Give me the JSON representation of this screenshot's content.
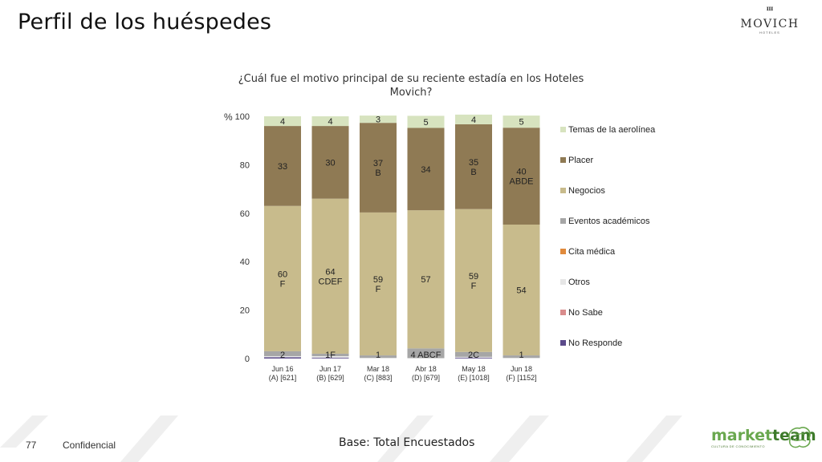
{
  "slide": {
    "title": "Perfil de los huéspedes",
    "page_number": "77",
    "confidential": "Confidencial",
    "base_note": "Base: Total Encuestados",
    "logo_brand": "MOVICH",
    "logo_brand_sub": "HOTELES",
    "logo_mt_part1": "market",
    "logo_mt_part2": "team",
    "logo_mt_tagline": "CULTURA DE CONOCIMIENTO"
  },
  "chart_data": {
    "type": "bar",
    "stacked": true,
    "title": "¿Cuál fue el motivo principal de su reciente estadía en los Hoteles Movich?",
    "ylabel": "%",
    "ylim": [
      0,
      100
    ],
    "yticks": [
      0,
      20,
      40,
      60,
      80,
      100
    ],
    "grid": false,
    "legend_position": "right",
    "categories": [
      [
        "Jun 16",
        "(A) [621]"
      ],
      [
        "Jun 17",
        "(B) [629]"
      ],
      [
        "Mar 18",
        "(C) [883]"
      ],
      [
        "Abr 18",
        "(D) [679]"
      ],
      [
        "May 18",
        "(E) [1018]"
      ],
      [
        "Jun 18",
        "(F) [1152]"
      ]
    ],
    "series": [
      {
        "name": "No Responde",
        "color": "#5b4a8a",
        "values": [
          0.5,
          0.3,
          0,
          0,
          0.3,
          0
        ],
        "labels": [
          "",
          "",
          "",
          "",
          "",
          ""
        ]
      },
      {
        "name": "No Sabe",
        "color": "#d98c8c",
        "values": [
          0,
          0,
          0,
          0,
          0,
          0
        ],
        "labels": [
          "",
          "",
          "",
          "",
          "",
          ""
        ]
      },
      {
        "name": "Otros",
        "color": "#e6e6e6",
        "values": [
          0.5,
          0.7,
          0.3,
          0.2,
          0.4,
          0.3
        ],
        "labels": [
          "",
          "",
          "",
          "",
          "",
          ""
        ]
      },
      {
        "name": "Cita médica",
        "color": "#e08a3c",
        "values": [
          0,
          0,
          0,
          0,
          0,
          0
        ],
        "labels": [
          "",
          "",
          "",
          "",
          "",
          ""
        ]
      },
      {
        "name": "Eventos académicos",
        "color": "#a6a6a6",
        "values": [
          2,
          1,
          1,
          4,
          2,
          1
        ],
        "labels": [
          "2",
          "1F",
          "1",
          "4 ABCF",
          "2C",
          "1"
        ]
      },
      {
        "name": "Negocios",
        "color": "#c8bb8c",
        "values": [
          60,
          64,
          59,
          57,
          59,
          54
        ],
        "labels": [
          [
            "60",
            "F"
          ],
          [
            "64",
            "CDEF"
          ],
          [
            "59",
            "F"
          ],
          [
            "57"
          ],
          [
            "59",
            "F"
          ],
          [
            "54"
          ]
        ]
      },
      {
        "name": "Placer",
        "color": "#8f7a54",
        "values": [
          33,
          30,
          37,
          34,
          35,
          40
        ],
        "labels": [
          [
            "33"
          ],
          [
            "30"
          ],
          [
            "37",
            "B"
          ],
          [
            "34"
          ],
          [
            "35",
            "B"
          ],
          [
            "40",
            "ABDE"
          ]
        ]
      },
      {
        "name": "Temas de la aerolínea",
        "color": "#d7e3bf",
        "values": [
          4,
          4,
          3,
          5,
          4,
          5
        ],
        "labels": [
          [
            "4"
          ],
          [
            "4"
          ],
          [
            "3"
          ],
          [
            "5"
          ],
          [
            "4"
          ],
          [
            "5"
          ]
        ]
      }
    ]
  }
}
